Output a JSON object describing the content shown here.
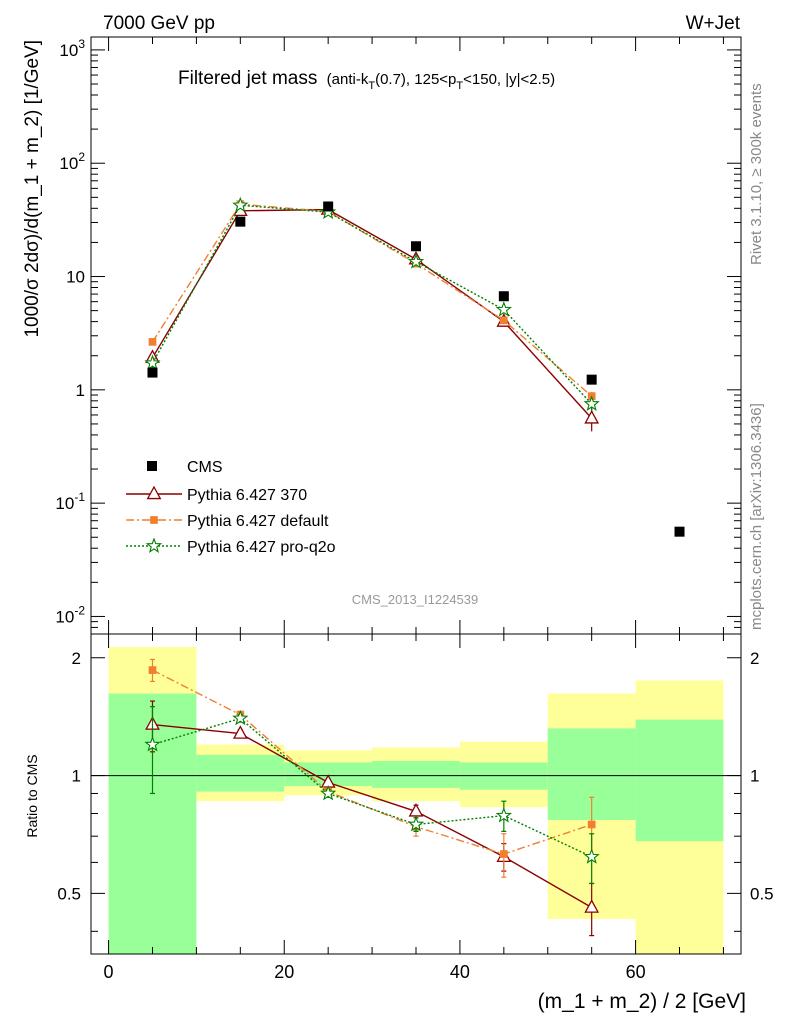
{
  "header": {
    "beam": "7000 GeV pp",
    "process": "W+Jet",
    "side_rivet": "Rivet 3.1.10, ≥ 300k events",
    "side_mcplots": "mcplots.cern.ch [arXiv:1306.3436]",
    "watermark": "CMS_2013_I1224539"
  },
  "chart_data": {
    "type": "scatter",
    "title_main": "Filtered jet mass",
    "title_detail": "(anti-k_T(0.7), 125<p_T<150, |y|<2.5)",
    "title_parts": {
      "a": "(anti-k",
      "sub1": "T",
      "b": "(0.7), 125<p",
      "sub2": "T",
      "c": "<150, |y|<2.5)"
    },
    "xlabel": "(m_1 + m_2) / 2 [GeV]",
    "ylabel": "1000/σ 2dσ)/d(m_1 + m_2) [1/GeV]",
    "ratio_ylabel": "Ratio to CMS",
    "xlim": [
      -2,
      72
    ],
    "ylim": [
      0.007,
      1300
    ],
    "ratio_ylim": [
      0.35,
      2.3
    ],
    "x_ticks": [
      "0",
      "20",
      "40",
      "60"
    ],
    "y_ticks": [
      {
        "base": "10",
        "exp": "-2"
      },
      {
        "base": "10",
        "exp": "-1"
      },
      {
        "base": "1",
        "exp": ""
      },
      {
        "base": "10",
        "exp": ""
      },
      {
        "base": "10",
        "exp": "2"
      },
      {
        "base": "10",
        "exp": "3"
      }
    ],
    "ratio_ticks": [
      "0.5",
      "1",
      "2"
    ],
    "bin_edges": [
      0,
      10,
      20,
      30,
      40,
      50,
      60,
      70
    ],
    "data": {
      "name": "CMS",
      "x": [
        5,
        15,
        25,
        35,
        45,
        55,
        65
      ],
      "y": [
        1.42,
        30.5,
        41.5,
        18.5,
        6.7,
        1.23,
        0.056
      ]
    },
    "band_stat_lo": [
      0.35,
      0.91,
      0.94,
      0.93,
      0.92,
      0.77,
      0.68
    ],
    "band_stat_hi": [
      1.62,
      1.13,
      1.08,
      1.09,
      1.08,
      1.32,
      1.39
    ],
    "band_tot_lo": [
      0.35,
      0.86,
      0.89,
      0.86,
      0.83,
      0.43,
      0.35
    ],
    "band_tot_hi": [
      2.13,
      1.2,
      1.16,
      1.18,
      1.22,
      1.62,
      1.75
    ],
    "series": [
      {
        "name": "Pythia 6.427 370",
        "color": "#8b0000",
        "marker": "triangle",
        "dash": "",
        "x": [
          5,
          15,
          25,
          35,
          45,
          55
        ],
        "y": [
          1.92,
          38.0,
          39.0,
          14.2,
          4.0,
          0.56
        ],
        "yerr": [
          0.15,
          0.8,
          0.8,
          0.4,
          0.2,
          0.13
        ],
        "ratio": [
          1.35,
          1.28,
          0.96,
          0.81,
          0.62,
          0.46
        ],
        "ratio_err": [
          0.2,
          0.03,
          0.02,
          0.03,
          0.05,
          0.07
        ]
      },
      {
        "name": "Pythia 6.427 default",
        "color": "#f07f30",
        "marker": "square",
        "dash": "8,3,2,3",
        "x": [
          5,
          15,
          25,
          35,
          45,
          55
        ],
        "y": [
          2.65,
          43.5,
          37.5,
          13.0,
          4.1,
          0.88
        ],
        "yerr": [
          0.15,
          0.8,
          0.8,
          0.4,
          0.2,
          0.08
        ],
        "ratio": [
          1.86,
          1.43,
          0.91,
          0.74,
          0.63,
          0.75
        ],
        "ratio_err": [
          0.12,
          0.03,
          0.02,
          0.04,
          0.08,
          0.13
        ]
      },
      {
        "name": "Pythia 6.427 pro-q2o",
        "color": "#008000",
        "marker": "star",
        "dash": "2,2",
        "x": [
          5,
          15,
          25,
          35,
          45,
          55
        ],
        "y": [
          1.72,
          42.5,
          37.0,
          13.5,
          5.1,
          0.75
        ],
        "yerr": [
          0.15,
          0.8,
          0.8,
          0.4,
          0.2,
          0.1
        ],
        "ratio": [
          1.2,
          1.4,
          0.9,
          0.75,
          0.79,
          0.62
        ],
        "ratio_err": [
          0.3,
          0.03,
          0.02,
          0.03,
          0.07,
          0.09
        ]
      }
    ],
    "legend_position": "lower-left"
  }
}
